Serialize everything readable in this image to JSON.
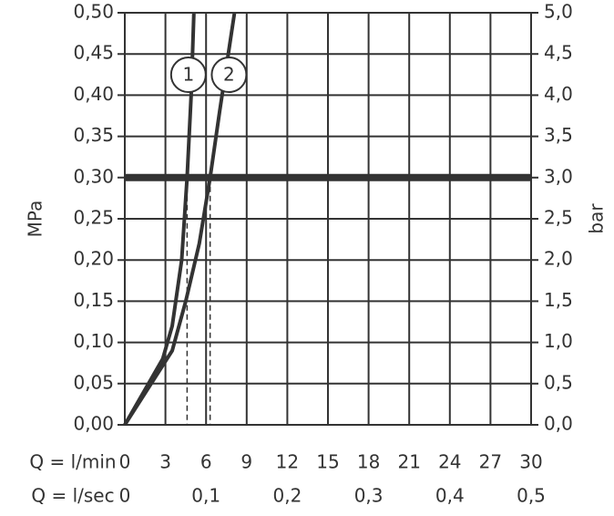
{
  "chart_data": {
    "type": "line",
    "xlabel": "Q = l/min",
    "x2label": "Q = l/sec",
    "ylabel": "MPa",
    "y2label": "bar",
    "xlim": [
      0,
      30
    ],
    "xticks": [
      0,
      3,
      6,
      9,
      12,
      15,
      18,
      21,
      24,
      27,
      30
    ],
    "x2lim": [
      0,
      0.5
    ],
    "x2ticks": [
      {
        "value": 0,
        "label": "0"
      },
      {
        "value": 0.1,
        "label": "0,1"
      },
      {
        "value": 0.2,
        "label": "0,2"
      },
      {
        "value": 0.3,
        "label": "0,3"
      },
      {
        "value": 0.4,
        "label": "0,4"
      },
      {
        "value": 0.5,
        "label": "0,5"
      }
    ],
    "ylim": [
      0,
      0.5
    ],
    "yticks": [
      {
        "value": 0,
        "label": "0,00"
      },
      {
        "value": 0.05,
        "label": "0,05"
      },
      {
        "value": 0.1,
        "label": "0,10"
      },
      {
        "value": 0.15,
        "label": "0,15"
      },
      {
        "value": 0.2,
        "label": "0,20"
      },
      {
        "value": 0.25,
        "label": "0,25"
      },
      {
        "value": 0.3,
        "label": "0,30"
      },
      {
        "value": 0.35,
        "label": "0,35"
      },
      {
        "value": 0.4,
        "label": "0,40"
      },
      {
        "value": 0.45,
        "label": "0,45"
      },
      {
        "value": 0.5,
        "label": "0,50"
      }
    ],
    "y2lim": [
      0,
      5
    ],
    "y2ticks": [
      {
        "value": 0,
        "label": "0,0"
      },
      {
        "value": 0.5,
        "label": "0,5"
      },
      {
        "value": 1,
        "label": "1,0"
      },
      {
        "value": 1.5,
        "label": "1,5"
      },
      {
        "value": 2,
        "label": "2,0"
      },
      {
        "value": 2.5,
        "label": "2,5"
      },
      {
        "value": 3,
        "label": "3,0"
      },
      {
        "value": 3.5,
        "label": "3,5"
      },
      {
        "value": 4,
        "label": "4,0"
      },
      {
        "value": 4.5,
        "label": "4,5"
      },
      {
        "value": 5,
        "label": "5,0"
      }
    ],
    "grid": true,
    "reference_line": 0.3,
    "reference_x": [
      4.6,
      6.3
    ],
    "series": [
      {
        "name": "1",
        "color": "#333333",
        "x": [
          0,
          2.8,
          3.5,
          4.2,
          4.6,
          4.9,
          5.1
        ],
        "values": [
          0,
          0.08,
          0.12,
          0.2,
          0.3,
          0.4,
          0.5
        ]
      },
      {
        "name": "2",
        "color": "#333333",
        "x": [
          0,
          3.5,
          4.5,
          5.5,
          6.3,
          7,
          8.1
        ],
        "values": [
          0,
          0.09,
          0.15,
          0.22,
          0.3,
          0.38,
          0.5
        ]
      }
    ]
  }
}
